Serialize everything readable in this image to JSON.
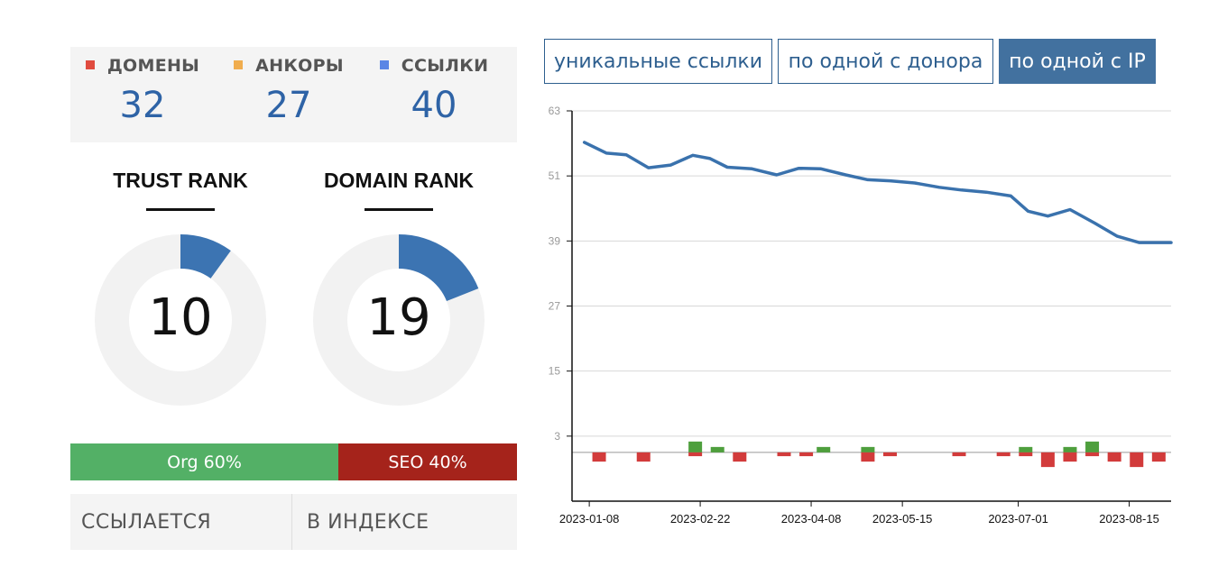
{
  "stats": [
    {
      "label": "ДОМЕНЫ",
      "value": "32",
      "color": "#e04b3f"
    },
    {
      "label": "АНКОРЫ",
      "value": "27",
      "color": "#f0ad4e"
    },
    {
      "label": "ССЫЛКИ",
      "value": "40",
      "color": "#5b86e5"
    }
  ],
  "ranks": [
    {
      "title": "TRUST RANK",
      "value": "10",
      "percent": 10
    },
    {
      "title": "DOMAIN RANK",
      "value": "19",
      "percent": 19
    }
  ],
  "org_seo": {
    "org_label": "Org 60%",
    "org_percent": 60,
    "seo_label": "SEO 40%",
    "seo_percent": 40
  },
  "bottom_tabs": [
    "ССЫЛАЕТСЯ",
    "В ИНДЕКСЕ"
  ],
  "buttons": [
    {
      "label": "уникальные ссылки",
      "active": false
    },
    {
      "label": "по одной с донора",
      "active": false
    },
    {
      "label": "по одной с IP",
      "active": true
    }
  ],
  "colors": {
    "line": "#3a72ad",
    "up": "#4e9f3d",
    "down": "#d23b3b",
    "accent": "#2e63a6"
  },
  "chart_data": {
    "type": "line",
    "y_ticks": [
      3,
      15,
      27,
      39,
      51,
      63
    ],
    "ylim": [
      -9,
      63
    ],
    "xlim": [
      "2023-01-01",
      "2023-09-01"
    ],
    "x_ticks": [
      "2023-01-08",
      "2023-02-22",
      "2023-04-08",
      "2023-05-15",
      "2023-07-01",
      "2023-08-15"
    ],
    "series": [
      {
        "x": [
          "2023-01-06",
          "2023-01-15",
          "2023-01-23",
          "2023-02-01",
          "2023-02-10",
          "2023-02-19",
          "2023-02-26",
          "2023-03-05",
          "2023-03-15",
          "2023-03-25",
          "2023-04-03",
          "2023-04-12",
          "2023-04-22",
          "2023-05-01",
          "2023-05-10",
          "2023-05-20",
          "2023-05-30",
          "2023-06-08",
          "2023-06-18",
          "2023-06-28",
          "2023-07-05",
          "2023-07-13",
          "2023-07-22",
          "2023-08-01",
          "2023-08-10",
          "2023-08-19",
          "2023-08-27",
          "2023-09-01"
        ],
        "y": [
          57.2,
          55.2,
          54.9,
          52.5,
          53.0,
          54.8,
          54.2,
          52.6,
          52.3,
          51.2,
          52.4,
          52.3,
          51.2,
          50.3,
          50.1,
          49.7,
          48.9,
          48.4,
          48.0,
          47.3,
          44.5,
          43.6,
          44.8,
          42.3,
          39.9,
          38.7,
          38.7,
          38.7
        ]
      }
    ],
    "bars": [
      {
        "x": "2023-01-12",
        "value": -1.7
      },
      {
        "x": "2023-01-30",
        "value": -1.7
      },
      {
        "x": "2023-02-20",
        "value": 2.0
      },
      {
        "x": "2023-02-20",
        "value": -0.7
      },
      {
        "x": "2023-03-01",
        "value": 1.0
      },
      {
        "x": "2023-03-10",
        "value": -1.7
      },
      {
        "x": "2023-03-28",
        "value": -0.7
      },
      {
        "x": "2023-04-06",
        "value": -0.7
      },
      {
        "x": "2023-04-13",
        "value": 1.0
      },
      {
        "x": "2023-05-01",
        "value": 1.0
      },
      {
        "x": "2023-05-01",
        "value": -1.7
      },
      {
        "x": "2023-05-10",
        "value": -0.7
      },
      {
        "x": "2023-06-07",
        "value": -0.7
      },
      {
        "x": "2023-06-25",
        "value": -0.7
      },
      {
        "x": "2023-07-04",
        "value": 1.0
      },
      {
        "x": "2023-07-04",
        "value": -0.7
      },
      {
        "x": "2023-07-13",
        "value": -2.7
      },
      {
        "x": "2023-07-22",
        "value": 1.0
      },
      {
        "x": "2023-07-22",
        "value": -1.7
      },
      {
        "x": "2023-07-31",
        "value": 2.0
      },
      {
        "x": "2023-07-31",
        "value": -0.7
      },
      {
        "x": "2023-08-09",
        "value": -1.7
      },
      {
        "x": "2023-08-18",
        "value": -2.7
      },
      {
        "x": "2023-08-27",
        "value": -1.7
      }
    ]
  }
}
